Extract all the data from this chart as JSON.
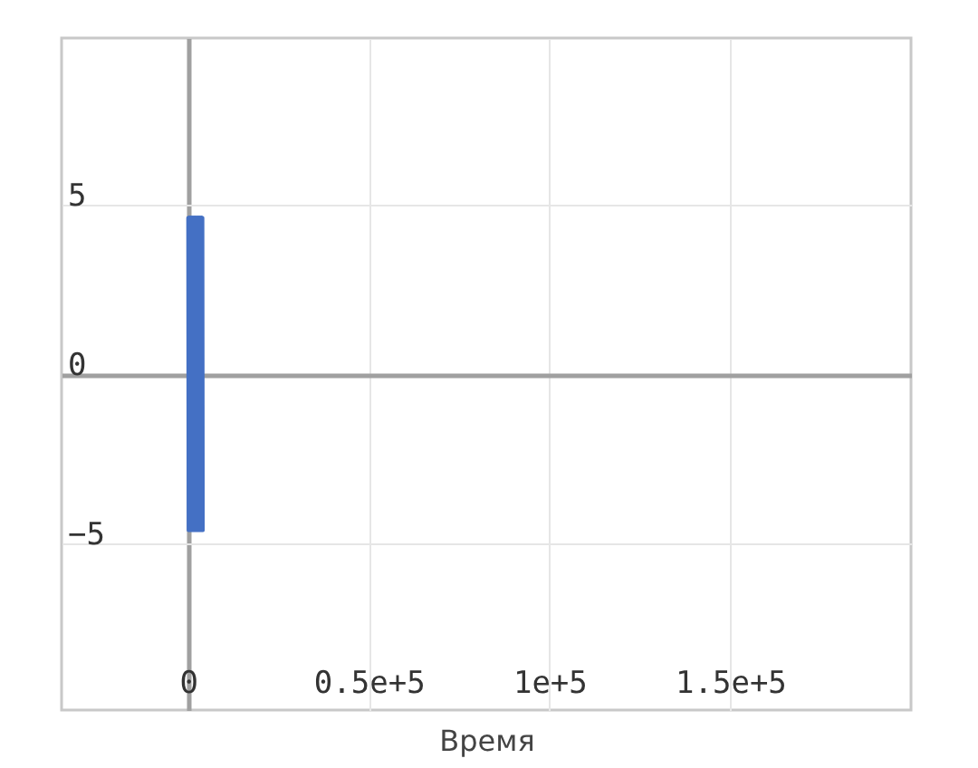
{
  "chart_data": {
    "type": "line",
    "xlabel": "Время",
    "xlim": [
      -35000,
      200000
    ],
    "ylim": [
      -9.9,
      9.9
    ],
    "xticks": [
      0,
      {
        "value": 50000,
        "label": "0.5e+5"
      },
      {
        "value": 100000,
        "label": "1e+5"
      },
      {
        "value": 150000,
        "label": "1.5e+5"
      }
    ],
    "yticks": [
      -5,
      0,
      5
    ],
    "grid": true,
    "x": [
      0,
      100,
      200,
      300,
      400,
      500,
      600,
      700,
      800,
      900,
      1000,
      1100,
      1200,
      1300,
      1400,
      1500,
      1600,
      1700,
      1800,
      1900,
      2000,
      2100,
      2200,
      2300,
      2400,
      2500,
      2600,
      2700,
      2800,
      2900,
      3000,
      3100,
      3200,
      3300,
      3400,
      3500,
      3600,
      3700,
      3800,
      3900,
      4000,
      4100
    ],
    "series": [
      {
        "color": "#4470c4",
        "values": [
          4.6,
          -4.6,
          4.6,
          -4.6,
          4.6,
          -4.6,
          4.6,
          -4.6,
          4.6,
          -4.6,
          4.6,
          -4.6,
          4.6,
          -4.6,
          4.6,
          -4.6,
          4.6,
          -4.6,
          4.6,
          -4.6,
          4.6,
          -4.6,
          4.6,
          -4.6,
          4.6,
          -4.6,
          4.6,
          -4.6,
          4.6,
          -4.6,
          4.6,
          -4.6,
          4.6,
          -4.6,
          4.6,
          -4.6,
          4.6,
          -4.6,
          4.6,
          -4.6,
          4.6,
          -4.6
        ]
      }
    ]
  }
}
